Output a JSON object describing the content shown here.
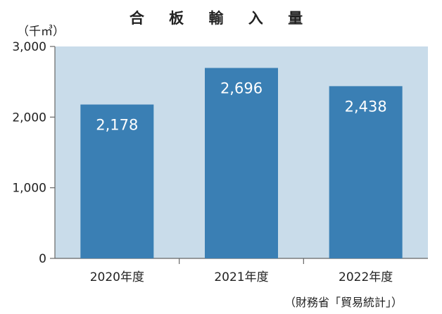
{
  "chart_data": {
    "type": "bar",
    "title": "合 板 輸 入 量",
    "ylabel": "（千㎥）",
    "categories": [
      "2020年度",
      "2021年度",
      "2022年度"
    ],
    "values": [
      2178,
      2696,
      2438
    ],
    "value_labels": [
      "2,178",
      "2,696",
      "2,438"
    ],
    "yticks": [
      0,
      1000,
      2000,
      3000
    ],
    "ytick_labels": [
      "0",
      "1,000",
      "2,000",
      "3,000"
    ],
    "ylim": [
      0,
      3000
    ],
    "legend": "none",
    "grid": false,
    "colors": {
      "bar": "#3a7fb4",
      "plot_bg": "#c9dcea",
      "axis": "#666666"
    }
  },
  "source_note": "（財務省「貿易統計」）"
}
